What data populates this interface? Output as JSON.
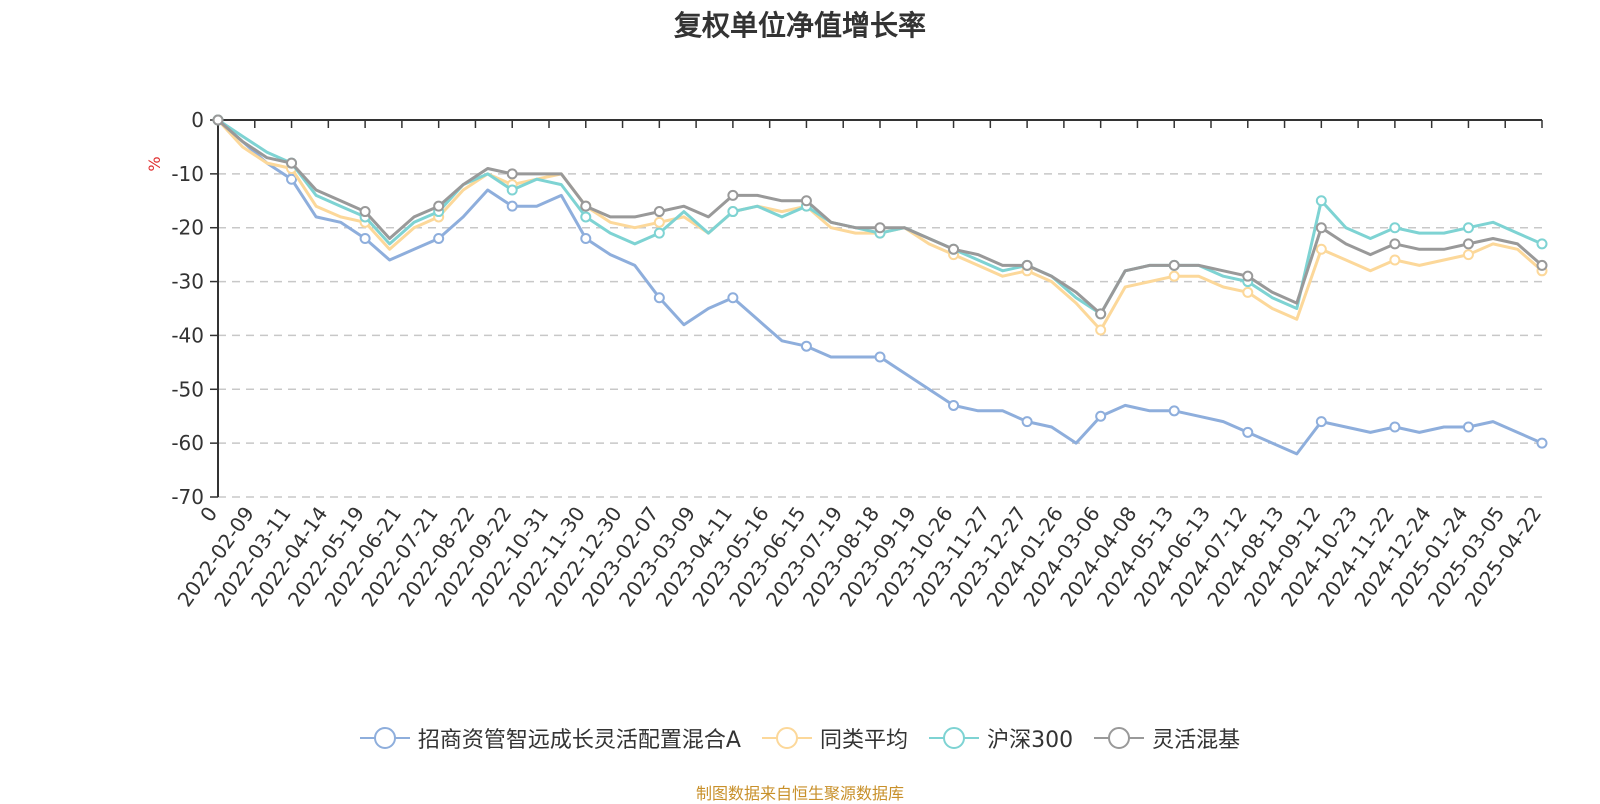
{
  "chart_data": {
    "type": "line",
    "title": "复权单位净值增长率",
    "ylabel": "%",
    "ylim": [
      -70,
      0
    ],
    "yticks": [
      0,
      -10,
      -20,
      -30,
      -40,
      -50,
      -60,
      -70
    ],
    "xlabels": [
      "0",
      "2022-02-09",
      "2022-03-11",
      "2022-04-14",
      "2022-05-19",
      "2022-06-21",
      "2022-07-21",
      "2022-08-22",
      "2022-09-22",
      "2022-10-31",
      "2022-11-30",
      "2022-12-30",
      "2023-02-07",
      "2023-03-09",
      "2023-04-11",
      "2023-05-16",
      "2023-06-15",
      "2023-07-19",
      "2023-08-18",
      "2023-09-19",
      "2023-10-26",
      "2023-11-27",
      "2023-12-27",
      "2024-01-26",
      "2024-03-06",
      "2024-04-08",
      "2024-05-13",
      "2024-06-13",
      "2024-07-12",
      "2024-08-13",
      "2024-09-12",
      "2024-10-23",
      "2024-11-22",
      "2024-12-24",
      "2025-01-24",
      "2025-03-05",
      "2025-04-22"
    ],
    "grid": true,
    "legend_position": "bottom",
    "series": [
      {
        "name": "招商资管智远成长灵活配置混合A",
        "color": "#8eaedc",
        "values": [
          0,
          -4,
          -8,
          -11,
          -18,
          -19,
          -22,
          -26,
          -24,
          -22,
          -18,
          -13,
          -16,
          -16,
          -14,
          -22,
          -25,
          -27,
          -33,
          -38,
          -35,
          -33,
          -37,
          -41,
          -42,
          -44,
          -44,
          -44,
          -47,
          -50,
          -53,
          -54,
          -54,
          -56,
          -57,
          -60,
          -55,
          -53,
          -54,
          -54,
          -55,
          -56,
          -58,
          -60,
          -62,
          -56,
          -57,
          -58,
          -57,
          -58,
          -57,
          -57,
          -56,
          -58,
          -60
        ]
      },
      {
        "name": "同类平均",
        "color": "#fcd89a",
        "values": [
          0,
          -5,
          -8,
          -9,
          -16,
          -18,
          -19,
          -24,
          -20,
          -18,
          -13,
          -10,
          -12,
          -11,
          -10,
          -16,
          -19,
          -20,
          -19,
          -18,
          -21,
          -17,
          -16,
          -17,
          -16,
          -20,
          -21,
          -21,
          -20,
          -23,
          -25,
          -27,
          -29,
          -28,
          -30,
          -34,
          -39,
          -31,
          -30,
          -29,
          -29,
          -31,
          -32,
          -35,
          -37,
          -24,
          -26,
          -28,
          -26,
          -27,
          -26,
          -25,
          -23,
          -24,
          -28
        ]
      },
      {
        "name": "沪深300",
        "color": "#7ed3d3",
        "values": [
          0,
          -3,
          -6,
          -8,
          -14,
          -16,
          -18,
          -23,
          -19,
          -17,
          -12,
          -10,
          -13,
          -11,
          -12,
          -18,
          -21,
          -23,
          -21,
          -17,
          -21,
          -17,
          -16,
          -18,
          -16,
          -19,
          -20,
          -21,
          -20,
          -22,
          -24,
          -26,
          -28,
          -27,
          -29,
          -33,
          -36,
          -28,
          -27,
          -27,
          -27,
          -29,
          -30,
          -33,
          -35,
          -15,
          -20,
          -22,
          -20,
          -21,
          -21,
          -20,
          -19,
          -21,
          -23
        ]
      },
      {
        "name": "灵活混基",
        "color": "#999999",
        "values": [
          0,
          -4,
          -7,
          -8,
          -13,
          -15,
          -17,
          -22,
          -18,
          -16,
          -12,
          -9,
          -10,
          -10,
          -10,
          -16,
          -18,
          -18,
          -17,
          -16,
          -18,
          -14,
          -14,
          -15,
          -15,
          -19,
          -20,
          -20,
          -20,
          -22,
          -24,
          -25,
          -27,
          -27,
          -29,
          -32,
          -36,
          -28,
          -27,
          -27,
          -27,
          -28,
          -29,
          -32,
          -34,
          -20,
          -23,
          -25,
          -23,
          -24,
          -24,
          -23,
          -22,
          -23,
          -27
        ]
      }
    ]
  },
  "source_text": "制图数据来自恒生聚源数据库",
  "source_color": "#c8902a",
  "axis_color": "#333333",
  "grid_color": "#c8c8c8",
  "unit_color": "#e03030"
}
